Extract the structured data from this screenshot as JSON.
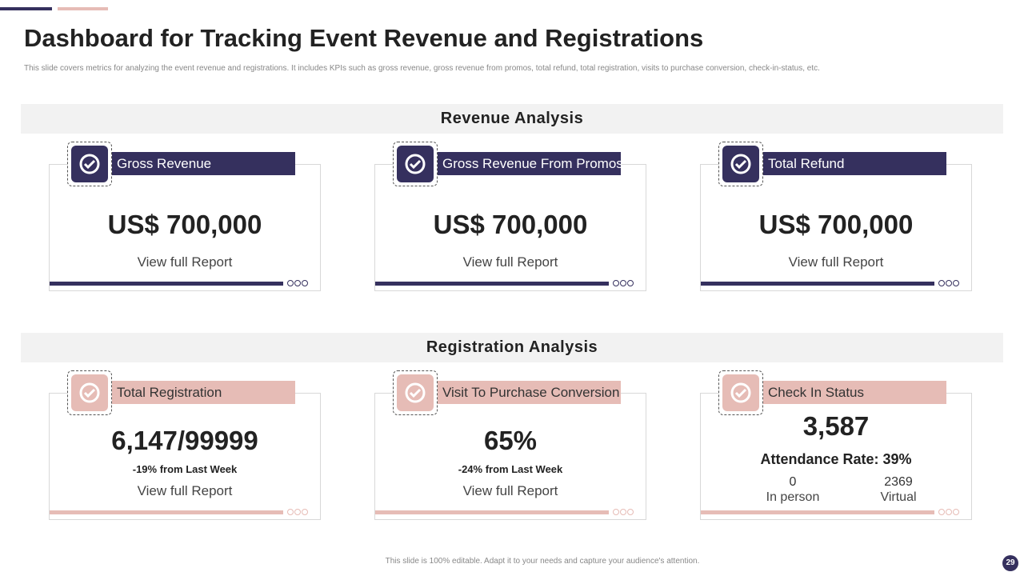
{
  "header": {
    "title": "Dashboard for Tracking Event Revenue and Registrations",
    "subtitle": "This slide covers metrics for analyzing the event revenue and registrations. It includes KPIs  such as gross revenue, gross revenue from promos, total refund, total registration, visits to purchase conversion, check-in-status, etc."
  },
  "sections": [
    {
      "heading": "Revenue Analysis",
      "cards": [
        {
          "label": "Gross Revenue",
          "value": "US$ 700,000",
          "link": "View full Report"
        },
        {
          "label": "Gross Revenue From Promos",
          "value": "US$ 700,000",
          "link": "View full Report"
        },
        {
          "label": "Total Refund",
          "value": "US$ 700,000",
          "link": "View full Report"
        }
      ]
    },
    {
      "heading": "Registration Analysis",
      "cards": [
        {
          "label": "Total Registration",
          "value": "6,147/99999",
          "note": "-19%  from Last Week",
          "link": "View full Report"
        },
        {
          "label": "Visit To Purchase Conversion",
          "value": "65%",
          "note": "-24% from Last Week",
          "link": "View full Report"
        },
        {
          "label": "Check In Status",
          "value": "3,587",
          "rate": "Attendance Rate: 39%",
          "stats": [
            {
              "value": "0",
              "label": "In person"
            },
            {
              "value": "2369",
              "label": "Virtual"
            }
          ]
        }
      ]
    }
  ],
  "footer": {
    "text": "This slide is 100% editable.  Adapt it to your needs and capture your audience's attention.",
    "page": "29"
  }
}
